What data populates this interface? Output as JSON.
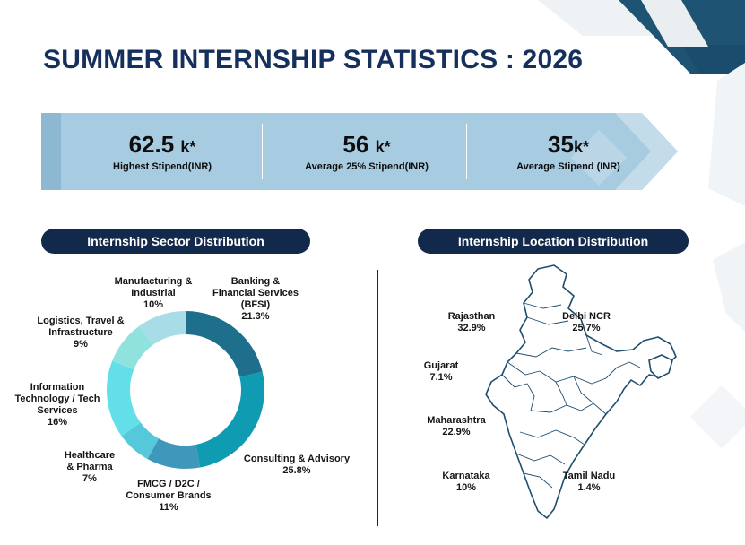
{
  "title": "SUMMER INTERNSHIP STATISTICS : 2026",
  "stats": [
    {
      "value": "62.5",
      "unit": "k*",
      "label": "Highest Stipend(INR)"
    },
    {
      "value": "56",
      "unit": "k*",
      "label": "Average 25% Stipend(INR)"
    },
    {
      "value": "35",
      "unit": "k*",
      "label": "Average Stipend (INR)"
    }
  ],
  "sector_heading": "Internship Sector Distribution",
  "location_heading": "Internship Location Distribution",
  "colors": {
    "title": "#15305c",
    "pill": "#13294b",
    "stats_band": "#a7cbe0",
    "accent_dark": "#1d4e6f"
  },
  "chart_data": [
    {
      "type": "pie",
      "title": "Internship Sector Distribution",
      "categories": [
        "Banking & Financial Services (BFSI)",
        "Consulting & Advisory",
        "FMCG / D2C / Consumer Brands",
        "Healthcare & Pharma",
        "Information Technology / Tech Services",
        "Logistics, Travel & Infrastructure",
        "Manufacturing & Industrial"
      ],
      "label_lines": [
        [
          "Banking &",
          "Financial Services",
          "(BFSI)"
        ],
        [
          "Consulting & Advisory"
        ],
        [
          "FMCG / D2C /",
          "Consumer Brands"
        ],
        [
          "Healthcare",
          "& Pharma"
        ],
        [
          "Information",
          "Technology / Tech",
          "Services"
        ],
        [
          "Logistics, Travel &",
          "Infrastructure"
        ],
        [
          "Manufacturing &",
          "Industrial"
        ]
      ],
      "values": [
        21.3,
        25.8,
        11,
        7,
        16,
        9,
        10
      ],
      "value_labels": [
        "21.3%",
        "25.8%",
        "11%",
        "7%",
        "16%",
        "9%",
        "10%"
      ],
      "colors": [
        "#1e6f8c",
        "#0f9cb3",
        "#3f97bb",
        "#55c8db",
        "#63dfea",
        "#8fe3dc",
        "#a8dce6"
      ]
    },
    {
      "type": "table",
      "title": "Internship Location Distribution",
      "categories": [
        "Rajasthan",
        "Delhi NCR",
        "Gujarat",
        "Maharashtra",
        "Karnataka",
        "Tamil Nadu"
      ],
      "values": [
        32.9,
        25.7,
        7.1,
        22.9,
        10,
        1.4
      ],
      "value_labels": [
        "32.9%",
        "25.7%",
        "7.1%",
        "22.9%",
        "10%",
        "1.4%"
      ]
    }
  ]
}
